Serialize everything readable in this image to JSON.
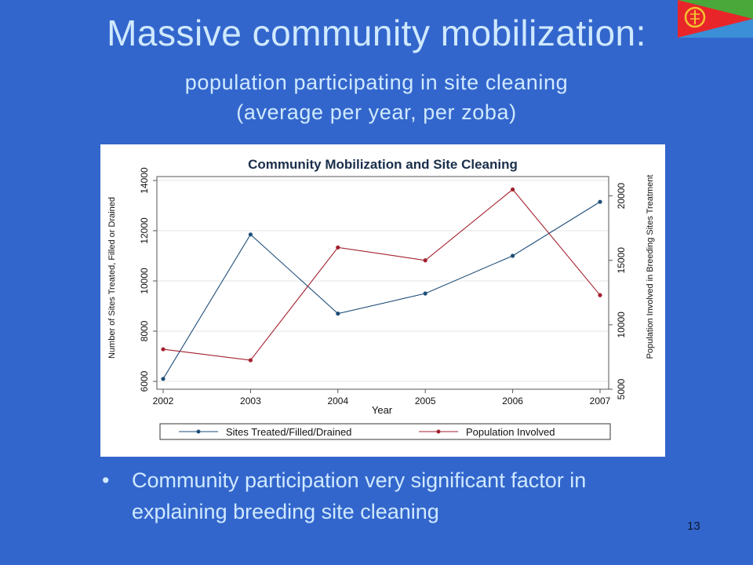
{
  "slide": {
    "title": "Massive community mobilization:",
    "subtitle_line1": "population participating in site cleaning",
    "subtitle_line2": "(average per year, per zoba)",
    "bullet": "Community participation very significant factor in explaining breeding site cleaning",
    "page_number": "13",
    "flag_icon": "eritrea-flag-icon"
  },
  "colors": {
    "background": "#3366cc",
    "title_text": "#cfe9ff",
    "series_sites": "#1f4e79",
    "series_population": "#a31f2d"
  },
  "chart_data": {
    "type": "line",
    "title": "Community Mobilization and Site Cleaning",
    "xlabel": "Year",
    "ylabel_left": "Number of Sites Treated, Filled or Drained",
    "ylabel_right": "Population Involved in Breeding Sites Treatment",
    "x": [
      2002,
      2003,
      2004,
      2005,
      2006,
      2007
    ],
    "x_ticks": [
      "2002",
      "2003",
      "2004",
      "2005",
      "2006",
      "2007"
    ],
    "y_left_ticks": [
      "6000",
      "8000",
      "10000",
      "12000",
      "14000"
    ],
    "y_right_ticks": [
      "5000",
      "10000",
      "15000",
      "20000"
    ],
    "ylim_left": [
      6000,
      14000
    ],
    "ylim_right": [
      5000,
      21500
    ],
    "grid": true,
    "legend_position": "bottom",
    "series": [
      {
        "name": "Sites Treated/Filled/Drained",
        "axis": "left",
        "values": [
          6100,
          11850,
          8700,
          9500,
          11000,
          13150
        ]
      },
      {
        "name": "Population Involved",
        "axis": "right",
        "values": [
          8100,
          7250,
          16000,
          15000,
          20500,
          12300
        ]
      }
    ]
  }
}
